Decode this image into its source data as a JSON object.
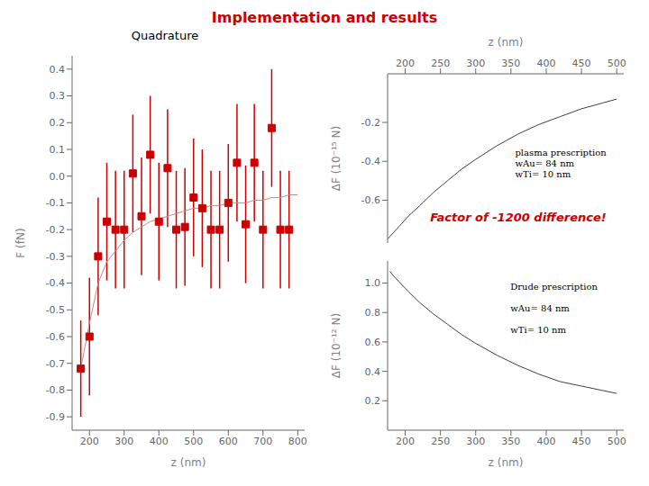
{
  "title": "Implementation and results",
  "color": "#cc0000",
  "chart_data": [
    {
      "type": "scatter",
      "title": "Quadrature",
      "xlabel": "z (nm)",
      "ylabel": "F (fN)",
      "xlim": [
        150,
        820
      ],
      "ylim": [
        -0.95,
        0.45
      ],
      "xticks": [
        200,
        300,
        400,
        500,
        600,
        700,
        800
      ],
      "yticks": [
        -0.9,
        -0.8,
        -0.7,
        -0.6,
        -0.5,
        -0.4,
        -0.3,
        -0.2,
        -0.1,
        {
          "value": 0,
          "label": "0.0"
        },
        0.1,
        0.2,
        0.3,
        0.4
      ],
      "series": [
        {
          "type": "scatter",
          "color": "#cc0000",
          "marker": "square",
          "x": [
            175,
            200,
            225,
            250,
            275,
            300,
            325,
            350,
            375,
            400,
            425,
            450,
            475,
            500,
            525,
            550,
            575,
            600,
            625,
            650,
            675,
            700,
            725,
            750,
            775
          ],
          "values": [
            -0.72,
            -0.6,
            -0.3,
            -0.17,
            -0.2,
            -0.2,
            0.01,
            -0.15,
            0.08,
            -0.17,
            0.03,
            -0.2,
            -0.19,
            -0.08,
            -0.12,
            -0.2,
            -0.2,
            -0.1,
            0.05,
            -0.18,
            0.05,
            -0.2,
            0.18,
            -0.2,
            -0.2
          ],
          "error": [
            0.18,
            0.22,
            0.22,
            0.22,
            0.22,
            0.22,
            0.22,
            0.22,
            0.22,
            0.22,
            0.22,
            0.22,
            0.22,
            0.22,
            0.22,
            0.22,
            0.22,
            0.22,
            0.22,
            0.22,
            0.22,
            0.22,
            0.22,
            0.22,
            0.22
          ]
        },
        {
          "type": "line",
          "color": "#cc8888",
          "x": [
            175,
            200,
            225,
            250,
            275,
            300,
            325,
            350,
            375,
            400,
            425,
            450,
            475,
            500,
            525,
            550,
            575,
            600,
            625,
            650,
            675,
            700,
            725,
            750,
            775,
            800
          ],
          "values": [
            -0.72,
            -0.55,
            -0.4,
            -0.32,
            -0.28,
            -0.24,
            -0.21,
            -0.19,
            -0.17,
            -0.16,
            -0.15,
            -0.14,
            -0.13,
            -0.12,
            -0.12,
            -0.11,
            -0.11,
            -0.1,
            -0.1,
            -0.1,
            -0.09,
            -0.09,
            -0.08,
            -0.08,
            -0.07,
            -0.07
          ]
        }
      ]
    },
    {
      "type": "line",
      "xlabel": "z (nm)",
      "ylabel": "ΔF (10⁻¹⁵ N)",
      "xlim": [
        175,
        510
      ],
      "ylim": [
        -0.82,
        0.05
      ],
      "xticks": [
        200,
        250,
        300,
        350,
        400,
        450,
        500
      ],
      "yticks": [
        -0.6,
        -0.4,
        -0.2
      ],
      "color": "#404040",
      "x": [
        175,
        185,
        195,
        205,
        220,
        240,
        260,
        280,
        300,
        330,
        360,
        390,
        420,
        450,
        480,
        500
      ],
      "values": [
        -0.8,
        -0.76,
        -0.72,
        -0.68,
        -0.63,
        -0.56,
        -0.5,
        -0.44,
        -0.39,
        -0.32,
        -0.26,
        -0.21,
        -0.17,
        -0.13,
        -0.1,
        -0.08
      ],
      "annotations": [
        {
          "text": "plasma prescription\nwAu= 84 nm\nwTi= 10 nm"
        },
        {
          "text": "Factor of -1200 difference!",
          "color": "#cc0000"
        }
      ]
    },
    {
      "type": "line",
      "xlabel": "z (nm)",
      "ylabel": "ΔF (10⁻¹² N)",
      "xlim": [
        175,
        510
      ],
      "ylim": [
        0,
        1.15
      ],
      "xticks": [
        200,
        250,
        300,
        350,
        400,
        450,
        500
      ],
      "yticks": [
        0.2,
        0.4,
        0.6,
        0.8,
        {
          "value": 1,
          "label": "1.0"
        }
      ],
      "color": "#404040",
      "x": [
        178,
        185,
        195,
        205,
        220,
        240,
        260,
        280,
        300,
        330,
        360,
        390,
        420,
        450,
        480,
        500
      ],
      "values": [
        1.08,
        1.04,
        0.99,
        0.94,
        0.87,
        0.79,
        0.72,
        0.65,
        0.59,
        0.51,
        0.44,
        0.38,
        0.33,
        0.3,
        0.27,
        0.25
      ],
      "annotations": [
        {
          "text": "Drude prescription\n\nwAu= 84 nm\n\nwTi= 10 nm"
        }
      ]
    }
  ]
}
